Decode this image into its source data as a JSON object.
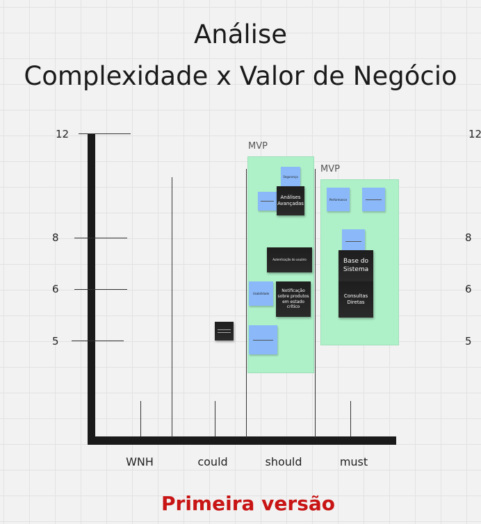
{
  "title": {
    "line1": "Análise",
    "line2": "Complexidade x Valor de Negócio"
  },
  "y_axis": {
    "ticks": [
      "12",
      "8",
      "6",
      "5"
    ]
  },
  "x_axis": {
    "categories": [
      "WNH",
      "could",
      "should",
      "must"
    ]
  },
  "zones": [
    {
      "label": "MVP",
      "color": "#aef0c8"
    },
    {
      "label": "MVP",
      "color": "#aef0c8"
    }
  ],
  "stickies": {
    "seguranca": "Segurança",
    "analises": "Análises Avançadas",
    "performance": "Performance",
    "base": "Base do Sistema",
    "consultas": "Consultas Diretas",
    "autenticacao": "Autenticação do usuário",
    "usabilidade": "Usabilidade",
    "notificacao": "Notificação sobre produtos em estado crítico"
  },
  "footer": {
    "label": "Primeira versão",
    "color": "#c81414"
  }
}
